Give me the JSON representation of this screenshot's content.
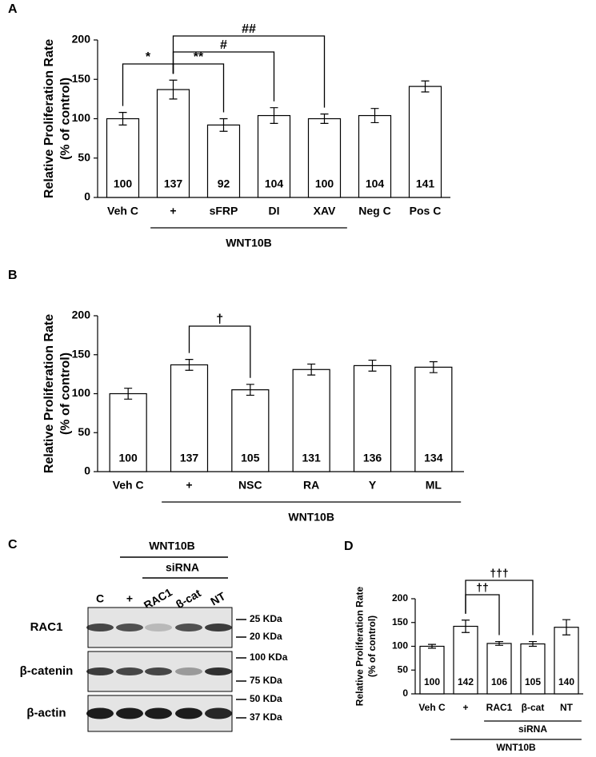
{
  "chart_data": [
    {
      "type": "bar",
      "panel_label": "A",
      "ylabel": "Relative Proliferation Rate",
      "ylabel2": "(% of control)",
      "categories": [
        "Veh C",
        "+",
        "sFRP",
        "DI",
        "XAV",
        "Neg C",
        "Pos C"
      ],
      "values": [
        100,
        137,
        92,
        104,
        100,
        104,
        141
      ],
      "errors": [
        8,
        12,
        8,
        10,
        6,
        9,
        7
      ],
      "color": "#ffffff",
      "ylim": [
        0,
        200
      ],
      "yticks": [
        0,
        50,
        100,
        150,
        200
      ],
      "annotations": [
        {
          "text": "*",
          "from": 0,
          "to": 1
        },
        {
          "text": "**",
          "from": 1,
          "to": 2
        },
        {
          "text": "#",
          "from": 1,
          "to": 3
        },
        {
          "text": "##",
          "from": 1,
          "to": 4
        }
      ],
      "groups": [
        {
          "label": "WNT10B",
          "from": 1,
          "to": 4
        }
      ]
    },
    {
      "type": "bar",
      "panel_label": "B",
      "ylabel": "Relative Proliferation Rate",
      "ylabel2": "(% of control)",
      "categories": [
        "Veh C",
        "+",
        "NSC",
        "RA",
        "Y",
        "ML"
      ],
      "values": [
        100,
        137,
        105,
        131,
        136,
        134
      ],
      "errors": [
        7,
        7,
        7,
        7,
        7,
        7
      ],
      "color": "#ffffff",
      "ylim": [
        0,
        200
      ],
      "yticks": [
        0,
        50,
        100,
        150,
        200
      ],
      "annotations": [
        {
          "text": "†",
          "from": 1,
          "to": 2
        }
      ],
      "groups": [
        {
          "label": "WNT10B",
          "from": 1,
          "to": 5
        }
      ]
    },
    {
      "type": "bar",
      "panel_label": "D",
      "ylabel": "Relative Proliferation Rate",
      "ylabel2": "(% of control)",
      "categories": [
        "Veh C",
        "+",
        "RAC1",
        "β-cat",
        "NT"
      ],
      "values": [
        100,
        142,
        106,
        105,
        140
      ],
      "errors": [
        4,
        13,
        4,
        5,
        16
      ],
      "color": "#ffffff",
      "ylim": [
        0,
        200
      ],
      "yticks": [
        0,
        50,
        100,
        150,
        200
      ],
      "annotations": [
        {
          "text": "††",
          "from": 1,
          "to": 2
        },
        {
          "text": "†††",
          "from": 1,
          "to": 3
        }
      ],
      "groups": [
        {
          "label": "siRNA",
          "from": 2,
          "to": 4
        },
        {
          "label": "WNT10B",
          "from": 1,
          "to": 4
        }
      ]
    }
  ],
  "blot": {
    "panel_label": "C",
    "header": "WNT10B",
    "subheader": "siRNA",
    "lanes": [
      "C",
      "+",
      "RAC1",
      "β-cat",
      "NT"
    ],
    "rows": [
      {
        "label": "RAC1",
        "markers": [
          "25 KDa",
          "20 KDa"
        ]
      },
      {
        "label": "β-catenin",
        "markers": [
          "100 KDa",
          "75 KDa"
        ]
      },
      {
        "label": "β-actin",
        "markers": [
          "50 KDa",
          "37 KDa"
        ]
      }
    ]
  }
}
